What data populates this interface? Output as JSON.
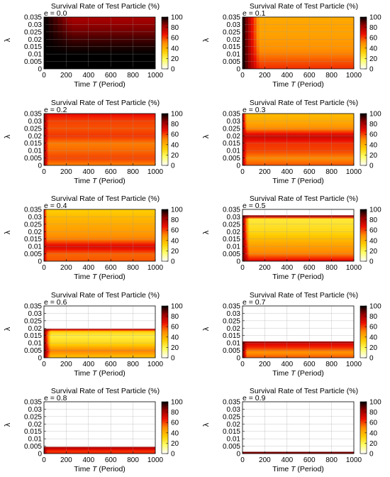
{
  "chart_data": {
    "type": "heatmap",
    "title": "Survival Rate of Test Particle (%)",
    "xlabel_prefix": "Time ",
    "xlabel_var": "T",
    "xlabel_suffix": " (Period)",
    "ylabel": "λ",
    "xlim": [
      0,
      1000
    ],
    "ylim": [
      0,
      0.035
    ],
    "xticks": [
      0,
      200,
      400,
      600,
      800,
      1000
    ],
    "yticks": [
      0,
      0.005,
      0.01,
      0.015,
      0.02,
      0.025,
      0.03,
      0.035
    ],
    "ytick_labels": [
      "0",
      "0.005",
      "0.01",
      "0.015",
      "0.02",
      "0.025",
      "0.03",
      "0.035"
    ],
    "colorbar": {
      "min": 0,
      "max": 100,
      "ticks": [
        0,
        20,
        40,
        60,
        80,
        100
      ]
    },
    "colormap": [
      "#ffffff",
      "#ffff66",
      "#ffcc00",
      "#ff8c00",
      "#ee1100",
      "#990000",
      "#000000"
    ],
    "grid": true,
    "panels": [
      {
        "label": "e = 0.0",
        "lambda_max": 0.035,
        "profile": [
          [
            0,
            100
          ],
          [
            0.01,
            100
          ],
          [
            0.015,
            97
          ],
          [
            0.02,
            93
          ],
          [
            0.025,
            88
          ],
          [
            0.03,
            84
          ],
          [
            0.035,
            80
          ]
        ],
        "transient_end_T": 250,
        "initial": 100
      },
      {
        "label": "e = 0.1",
        "lambda_max": 0.035,
        "profile": [
          [
            0,
            63
          ],
          [
            0.005,
            58
          ],
          [
            0.01,
            52
          ],
          [
            0.015,
            48
          ],
          [
            0.02,
            46
          ],
          [
            0.025,
            44
          ],
          [
            0.03,
            44
          ],
          [
            0.035,
            42
          ]
        ],
        "transient_end_T": 150,
        "initial": 100
      },
      {
        "label": "e = 0.2",
        "lambda_max": 0.035,
        "profile": [
          [
            0,
            50
          ],
          [
            0.005,
            60
          ],
          [
            0.01,
            55
          ],
          [
            0.015,
            52
          ],
          [
            0.02,
            62
          ],
          [
            0.025,
            58
          ],
          [
            0.03,
            60
          ],
          [
            0.035,
            68
          ]
        ],
        "transient_end_T": 40,
        "initial": 85
      },
      {
        "label": "e = 0.3",
        "lambda_max": 0.035,
        "profile": [
          [
            0,
            58
          ],
          [
            0.005,
            50
          ],
          [
            0.01,
            60
          ],
          [
            0.015,
            62
          ],
          [
            0.02,
            75
          ],
          [
            0.025,
            50
          ],
          [
            0.03,
            42
          ],
          [
            0.035,
            38
          ]
        ],
        "transient_end_T": 40,
        "initial": 80
      },
      {
        "label": "e = 0.4",
        "lambda_max": 0.035,
        "profile": [
          [
            0,
            58
          ],
          [
            0.005,
            55
          ],
          [
            0.01,
            72
          ],
          [
            0.015,
            52
          ],
          [
            0.02,
            46
          ],
          [
            0.025,
            42
          ],
          [
            0.03,
            38
          ],
          [
            0.035,
            32
          ]
        ],
        "transient_end_T": 30,
        "initial": 75
      },
      {
        "label": "e = 0.5",
        "lambda_max": 0.031,
        "profile": [
          [
            0,
            72
          ],
          [
            0.005,
            52
          ],
          [
            0.01,
            46
          ],
          [
            0.015,
            38
          ],
          [
            0.02,
            30
          ],
          [
            0.025,
            26
          ],
          [
            0.029,
            24
          ],
          [
            0.03,
            75
          ],
          [
            0.031,
            88
          ]
        ],
        "transient_end_T": 60,
        "initial": 90
      },
      {
        "label": "e = 0.6",
        "lambda_max": 0.0195,
        "profile": [
          [
            0,
            34
          ],
          [
            0.005,
            52
          ],
          [
            0.01,
            30
          ],
          [
            0.015,
            22
          ],
          [
            0.018,
            32
          ],
          [
            0.0195,
            85
          ]
        ],
        "transient_end_T": 60,
        "initial": 90
      },
      {
        "label": "e = 0.7",
        "lambda_max": 0.011,
        "profile": [
          [
            0,
            58
          ],
          [
            0.004,
            48
          ],
          [
            0.007,
            62
          ],
          [
            0.01,
            72
          ],
          [
            0.011,
            85
          ]
        ],
        "transient_end_T": 40,
        "initial": 90
      },
      {
        "label": "e = 0.8",
        "lambda_max": 0.0045,
        "profile": [
          [
            0,
            65
          ],
          [
            0.002,
            62
          ],
          [
            0.0045,
            80
          ]
        ],
        "transient_end_T": 30,
        "initial": 85
      },
      {
        "label": "e = 0.9",
        "lambda_max": 0.0012,
        "profile": [
          [
            0,
            70
          ],
          [
            0.0012,
            90
          ]
        ],
        "transient_end_T": 10,
        "initial": 90
      }
    ]
  }
}
